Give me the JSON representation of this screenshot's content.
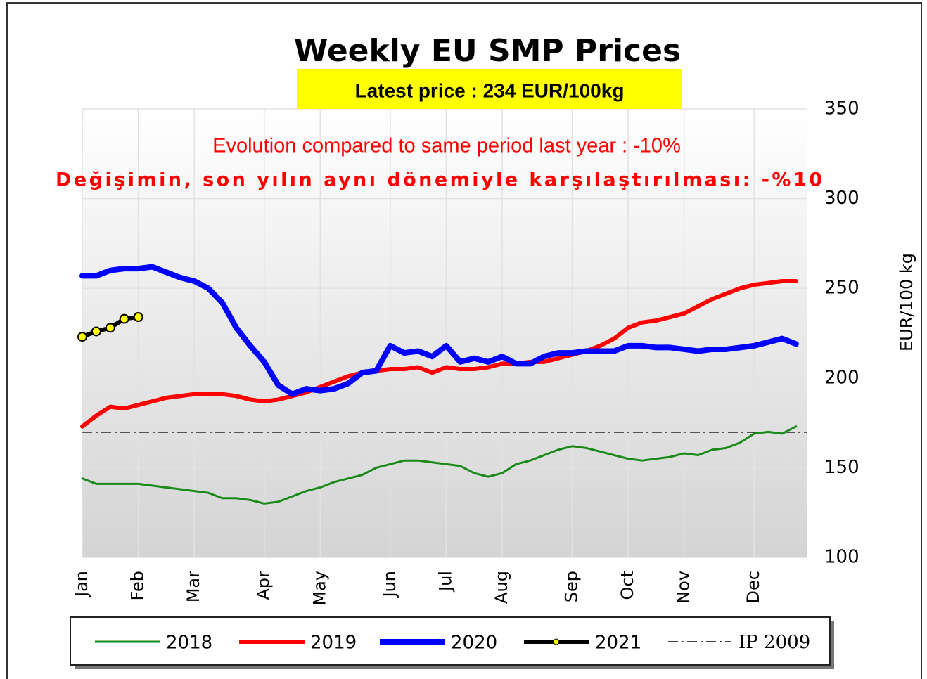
{
  "chart_data": {
    "type": "line",
    "title": "Weekly EU SMP Prices",
    "subtitle": "Latest price : 234 EUR/100kg",
    "annotations": [
      "Evolution compared to same period last year : -10%",
      "Değişimin,  son  yılın aynı dönemiyle  karşılaştırılması: -%10"
    ],
    "y_label": "EUR/100 kg",
    "categories": [
      "Jan",
      null,
      null,
      null,
      "Feb",
      null,
      null,
      null,
      "Mar",
      null,
      null,
      null,
      null,
      "Apr",
      null,
      null,
      null,
      "May",
      null,
      null,
      null,
      null,
      "Jun",
      null,
      null,
      null,
      "Jul",
      null,
      null,
      null,
      "Aug",
      null,
      null,
      null,
      null,
      "Sep",
      null,
      null,
      null,
      "Oct",
      null,
      null,
      null,
      "Nov",
      null,
      null,
      null,
      null,
      "Dec",
      null,
      null,
      null
    ],
    "series": [
      {
        "name": "2018",
        "color": "#1a8a1a",
        "width": 3,
        "values": [
          144,
          141,
          141,
          141,
          141,
          140,
          139,
          138,
          137,
          136,
          133,
          133,
          132,
          130,
          131,
          134,
          137,
          139,
          142,
          144,
          146,
          150,
          152,
          154,
          154,
          153,
          152,
          151,
          147,
          145,
          147,
          152,
          154,
          157,
          160,
          162,
          161,
          159,
          157,
          155,
          154,
          155,
          156,
          158,
          157,
          160,
          161,
          164,
          169,
          170,
          169,
          173
        ]
      },
      {
        "name": "2019",
        "color": "#ff0000",
        "width": 6,
        "values": [
          173,
          179,
          184,
          183,
          185,
          187,
          189,
          190,
          191,
          191,
          191,
          190,
          188,
          187,
          188,
          190,
          192,
          195,
          198,
          201,
          203,
          204,
          205,
          205,
          206,
          203,
          206,
          205,
          205,
          206,
          208,
          208,
          209,
          209,
          211,
          213,
          215,
          218,
          222,
          228,
          231,
          232,
          234,
          236,
          240,
          244,
          247,
          250,
          252,
          253,
          254,
          254
        ]
      },
      {
        "name": "2020",
        "color": "#0000ff",
        "width": 8,
        "values": [
          257,
          257,
          260,
          261,
          261,
          262,
          259,
          256,
          254,
          250,
          242,
          228,
          218,
          209,
          196,
          191,
          194,
          193,
          194,
          197,
          203,
          204,
          218,
          214,
          215,
          212,
          218,
          209,
          211,
          209,
          212,
          208,
          208,
          212,
          214,
          214,
          215,
          215,
          215,
          218,
          218,
          217,
          217,
          216,
          215,
          216,
          216,
          217,
          218,
          220,
          222,
          219
        ]
      },
      {
        "name": "2021",
        "color": "#000000",
        "width": 6,
        "marker_color": "#ffff00",
        "values": [
          223,
          226,
          228,
          233,
          234,
          null,
          null,
          null,
          null,
          null,
          null,
          null,
          null,
          null,
          null,
          null,
          null,
          null,
          null,
          null,
          null,
          null,
          null,
          null,
          null,
          null,
          null,
          null,
          null,
          null,
          null,
          null,
          null,
          null,
          null,
          null,
          null,
          null,
          null,
          null,
          null,
          null,
          null,
          null,
          null,
          null,
          null,
          null,
          null,
          null,
          null,
          null
        ]
      }
    ],
    "reference_line": {
      "name": "IP 2009",
      "value": 169.8,
      "color": "#000000"
    },
    "ylim": [
      100,
      350
    ],
    "yticks": [
      100,
      150,
      200,
      250,
      300,
      350
    ],
    "y_axis_side": "right",
    "grid": true,
    "legend": "bottom"
  }
}
